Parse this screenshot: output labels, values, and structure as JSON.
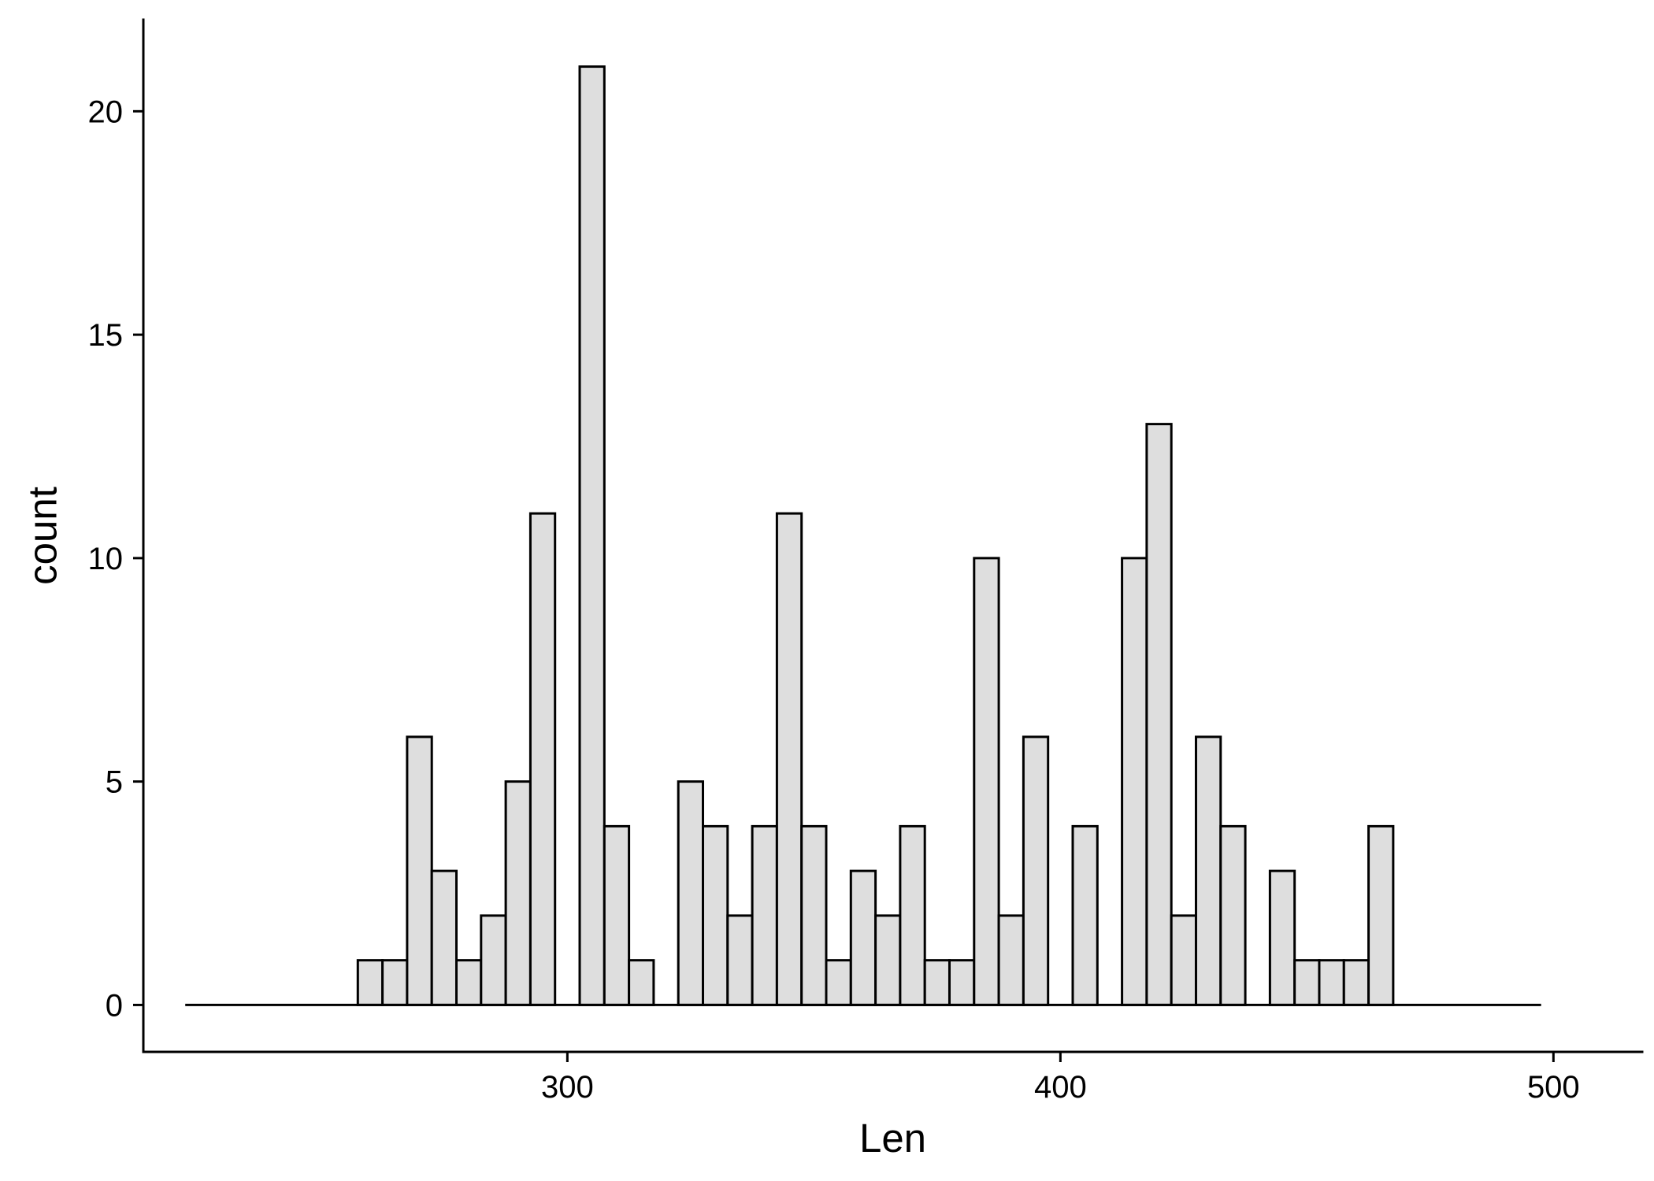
{
  "chart_data": {
    "type": "bar",
    "subtype": "histogram",
    "title": "",
    "xlabel": "Len",
    "ylabel": "count",
    "xlim": [
      214,
      518
    ],
    "ylim": [
      -1.05,
      22.05
    ],
    "x_ticks": [
      300,
      400,
      500
    ],
    "y_ticks": [
      0,
      5,
      10,
      15,
      20
    ],
    "bin_width": 5,
    "bins_start": 222.5,
    "bins_end": 497.5,
    "bins": [
      {
        "x0": 257.5,
        "x1": 262.5,
        "count": 1
      },
      {
        "x0": 262.5,
        "x1": 267.5,
        "count": 1
      },
      {
        "x0": 267.5,
        "x1": 272.5,
        "count": 6
      },
      {
        "x0": 272.5,
        "x1": 277.5,
        "count": 3
      },
      {
        "x0": 277.5,
        "x1": 282.5,
        "count": 1
      },
      {
        "x0": 282.5,
        "x1": 287.5,
        "count": 2
      },
      {
        "x0": 287.5,
        "x1": 292.5,
        "count": 5
      },
      {
        "x0": 292.5,
        "x1": 297.5,
        "count": 11
      },
      {
        "x0": 302.5,
        "x1": 307.5,
        "count": 21
      },
      {
        "x0": 307.5,
        "x1": 312.5,
        "count": 4
      },
      {
        "x0": 312.5,
        "x1": 317.5,
        "count": 1
      },
      {
        "x0": 322.5,
        "x1": 327.5,
        "count": 5
      },
      {
        "x0": 327.5,
        "x1": 332.5,
        "count": 4
      },
      {
        "x0": 332.5,
        "x1": 337.5,
        "count": 2
      },
      {
        "x0": 337.5,
        "x1": 342.5,
        "count": 4
      },
      {
        "x0": 342.5,
        "x1": 347.5,
        "count": 11
      },
      {
        "x0": 347.5,
        "x1": 352.5,
        "count": 4
      },
      {
        "x0": 352.5,
        "x1": 357.5,
        "count": 1
      },
      {
        "x0": 357.5,
        "x1": 362.5,
        "count": 3
      },
      {
        "x0": 362.5,
        "x1": 367.5,
        "count": 2
      },
      {
        "x0": 367.5,
        "x1": 372.5,
        "count": 4
      },
      {
        "x0": 372.5,
        "x1": 377.5,
        "count": 1
      },
      {
        "x0": 377.5,
        "x1": 382.5,
        "count": 1
      },
      {
        "x0": 382.5,
        "x1": 387.5,
        "count": 10
      },
      {
        "x0": 387.5,
        "x1": 392.5,
        "count": 2
      },
      {
        "x0": 392.5,
        "x1": 397.5,
        "count": 6
      },
      {
        "x0": 402.5,
        "x1": 407.5,
        "count": 4
      },
      {
        "x0": 412.5,
        "x1": 417.5,
        "count": 10
      },
      {
        "x0": 417.5,
        "x1": 422.5,
        "count": 13
      },
      {
        "x0": 422.5,
        "x1": 427.5,
        "count": 2
      },
      {
        "x0": 427.5,
        "x1": 432.5,
        "count": 6
      },
      {
        "x0": 432.5,
        "x1": 437.5,
        "count": 4
      },
      {
        "x0": 442.5,
        "x1": 447.5,
        "count": 3
      },
      {
        "x0": 447.5,
        "x1": 452.5,
        "count": 1
      },
      {
        "x0": 452.5,
        "x1": 457.5,
        "count": 1
      },
      {
        "x0": 457.5,
        "x1": 462.5,
        "count": 1
      },
      {
        "x0": 462.5,
        "x1": 467.5,
        "count": 4
      }
    ],
    "grid": false,
    "legend": "none",
    "colors": {
      "bar_fill": "#dedede",
      "bar_stroke": "#000000",
      "axis": "#000000",
      "text": "#000000",
      "background": "#ffffff"
    }
  }
}
